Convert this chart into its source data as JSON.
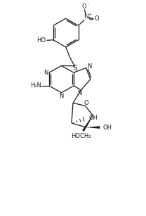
{
  "bg_color": "#ffffff",
  "line_color": "#1a1a1a",
  "line_width": 0.9,
  "font_size": 6.0,
  "fig_width": 2.08,
  "fig_height": 3.07,
  "dpi": 100,
  "xlim": [
    0,
    10
  ],
  "ylim": [
    0,
    15
  ]
}
